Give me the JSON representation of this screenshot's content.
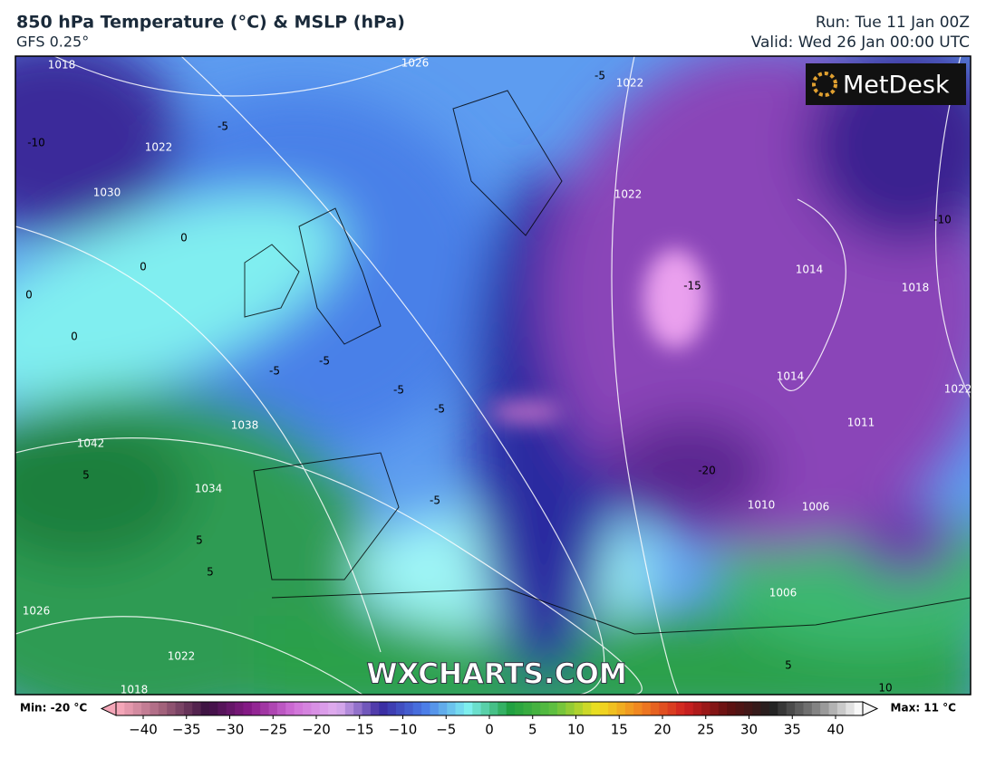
{
  "header": {
    "title": "850 hPa Temperature (°C) & MSLP (hPa)",
    "subtitle": "GFS 0.25°",
    "run": "Run: Tue 11 Jan 00Z",
    "valid": "Valid: Wed 26 Jan 00:00 UTC"
  },
  "logo": "MetDesk",
  "watermark": "WXCHARTS.COM",
  "contour_labels": [
    "1018",
    "1026",
    "1022",
    "-5",
    "-5",
    "-10",
    "1022",
    "1030",
    "1022",
    "-15",
    "1014",
    "1018",
    "-10",
    "0",
    "0",
    "0",
    "0",
    "-5",
    "-5",
    "-5",
    "1014",
    "1022",
    "1038",
    "-5",
    "1042",
    "5",
    "1034",
    "-5",
    "-20",
    "1010",
    "1006",
    "1011",
    "5",
    "5",
    "1026",
    "1022",
    "1018",
    "1006",
    "5",
    "10"
  ],
  "colorbar": {
    "min_label": "Min: -20 °C",
    "max_label": "Max: 11 °C",
    "ticks": [
      {
        "value": -40,
        "label": "−40"
      },
      {
        "value": -35,
        "label": "−35"
      },
      {
        "value": -30,
        "label": "−30"
      },
      {
        "value": -25,
        "label": "−25"
      },
      {
        "value": -20,
        "label": "−20"
      },
      {
        "value": -15,
        "label": "−15"
      },
      {
        "value": -10,
        "label": "−10"
      },
      {
        "value": -5,
        "label": "−5"
      },
      0,
      5,
      10,
      15,
      20,
      25,
      30,
      35,
      40
    ],
    "colors": [
      "#f4a6b8",
      "#a0607a",
      "#3a1040",
      "#8a1a8a",
      "#d070d8",
      "#e0b0f0",
      "#3a2aa0",
      "#4a7ae8",
      "#7ff0f0",
      "#20a040",
      "#60c040",
      "#f0e020",
      "#f08020",
      "#d02020",
      "#601010",
      "#202020",
      "#808080",
      "#f8f8f8"
    ]
  }
}
